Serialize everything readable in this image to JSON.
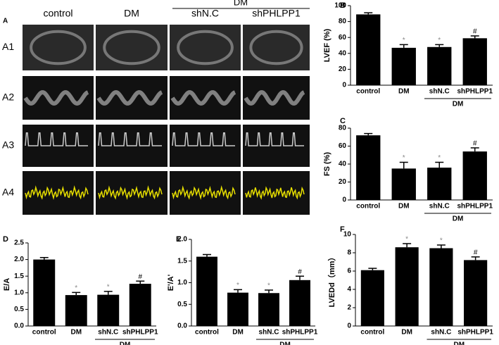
{
  "panel_a": {
    "label": "A",
    "group": "DM",
    "columns": [
      "control",
      "DM",
      "shN.C",
      "shPHLPP1"
    ],
    "rows": [
      "A1",
      "A2",
      "A3",
      "A4"
    ]
  },
  "chart_data": [
    {
      "type": "bar",
      "panel": "B",
      "ylabel": "LVEF (%)",
      "categories": [
        "control",
        "DM",
        "shN.C",
        "shPHLPP1"
      ],
      "values": [
        89,
        47,
        48,
        59
      ],
      "errors": [
        2,
        4,
        3,
        3
      ],
      "annotations": [
        null,
        "*",
        "*",
        "#"
      ],
      "group_label": "DM",
      "color": "#000000",
      "ylim": [
        0,
        100
      ],
      "yticks": [
        0,
        20,
        40,
        60,
        80,
        100
      ]
    },
    {
      "type": "bar",
      "panel": "C",
      "ylabel": "FS (%)",
      "categories": [
        "control",
        "DM",
        "shN.C",
        "shPHLPP1"
      ],
      "values": [
        72,
        35,
        36,
        54
      ],
      "errors": [
        2,
        7,
        6,
        4
      ],
      "annotations": [
        null,
        "*",
        "*",
        "#"
      ],
      "group_label": "DM",
      "color": "#000000",
      "ylim": [
        0,
        80
      ],
      "yticks": [
        0,
        20,
        40,
        60,
        80
      ]
    },
    {
      "type": "bar",
      "panel": "D",
      "ylabel": "E/A",
      "categories": [
        "control",
        "DM",
        "shN.C",
        "shPHLPP1"
      ],
      "values": [
        2.0,
        0.93,
        0.94,
        1.27
      ],
      "errors": [
        0.06,
        0.08,
        0.1,
        0.08
      ],
      "annotations": [
        null,
        "*",
        "*",
        "#"
      ],
      "group_label": "DM",
      "color": "#000000",
      "ylim": [
        0,
        2.5
      ],
      "yticks": [
        {
          "value": 0,
          "label": "0.0"
        },
        0.5,
        {
          "value": 1,
          "label": "1.0"
        },
        1.5,
        {
          "value": 2,
          "label": "2.0"
        },
        2.5
      ]
    },
    {
      "type": "bar",
      "panel": "E",
      "ylabel": "E'/A'",
      "categories": [
        "control",
        "DM",
        "shN.C",
        "shPHLPP1"
      ],
      "values": [
        1.6,
        0.77,
        0.76,
        1.06
      ],
      "errors": [
        0.05,
        0.07,
        0.07,
        0.09
      ],
      "annotations": [
        null,
        "*",
        "*",
        "#"
      ],
      "group_label": "DM",
      "color": "#000000",
      "ylim": [
        0,
        2
      ],
      "yticks": [
        {
          "value": 0,
          "label": "0.0"
        },
        0.5,
        {
          "value": 1,
          "label": "1.0"
        },
        1.5,
        {
          "value": 2,
          "label": "2.0"
        }
      ]
    },
    {
      "type": "bar",
      "panel": "F",
      "ylabel": "LVEDd（mm）",
      "categories": [
        "control",
        "DM",
        "shN.C",
        "shPHLPP1"
      ],
      "values": [
        6.1,
        8.6,
        8.5,
        7.2
      ],
      "errors": [
        0.2,
        0.4,
        0.35,
        0.35
      ],
      "annotations": [
        null,
        "*",
        "*",
        "#"
      ],
      "group_label": "DM",
      "color": "#000000",
      "ylim": [
        0,
        10
      ],
      "yticks": [
        0,
        2,
        4,
        6,
        8,
        10
      ]
    }
  ]
}
